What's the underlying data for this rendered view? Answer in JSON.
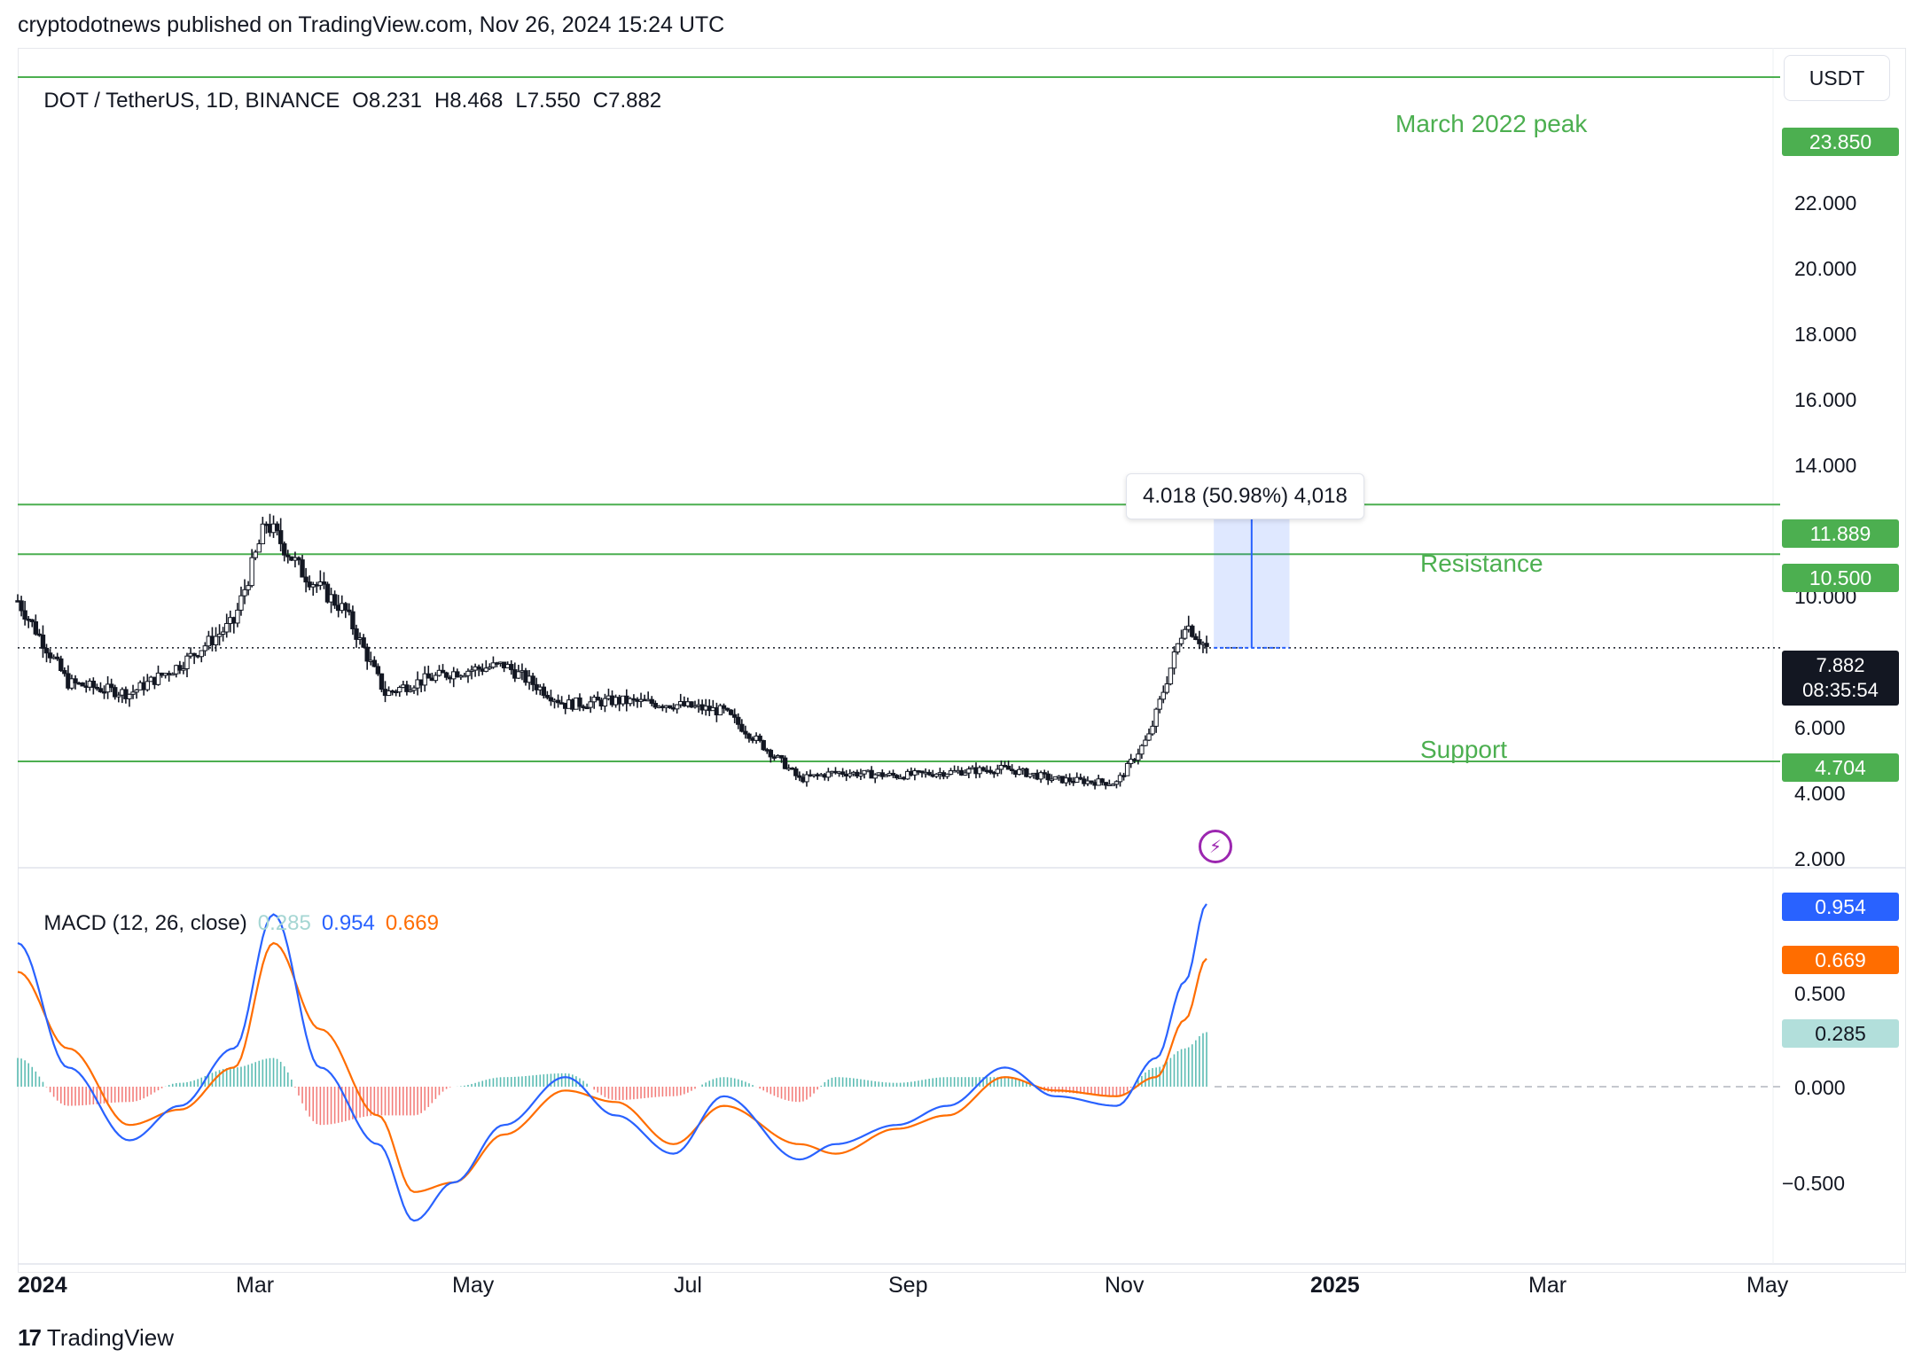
{
  "header": {
    "publish_line": "cryptodotnews published on TradingView.com, Nov 26, 2024 15:24 UTC",
    "symbol": "DOT / TetherUS, 1D, BINANCE",
    "open": "O8.231",
    "high": "H8.468",
    "low": "L7.550",
    "close": "C7.882",
    "currency_button": "USDT"
  },
  "annotations": {
    "peak_label": "March 2022 peak",
    "resistance_label": "Resistance",
    "support_label": "Support",
    "measure_text": "4.018 (50.98%) 4,018"
  },
  "price_tags": {
    "peak": "23.850",
    "upper": "11.889",
    "resistance": "10.500",
    "support": "4.704",
    "last": "7.882",
    "countdown": "08:35:54"
  },
  "price_axis": [
    "22.000",
    "20.000",
    "18.000",
    "16.000",
    "14.000",
    "10.000",
    "6.000",
    "4.000",
    "2.000"
  ],
  "macd": {
    "title": "MACD (12, 26, close)",
    "hist_value": "0.285",
    "macd_value": "0.954",
    "signal_value": "0.669",
    "axis": [
      "0.500",
      "0.000",
      "−0.500"
    ],
    "colors": {
      "macd": "#2962ff",
      "signal": "#ff6d00",
      "hist_pos": "#26a69a",
      "hist_neg": "#ef5350"
    }
  },
  "x_axis": [
    "2024",
    "Mar",
    "May",
    "Jul",
    "Sep",
    "Nov",
    "2025",
    "Mar",
    "May"
  ],
  "brand": "TradingView",
  "colors": {
    "level_line": "#4caf50",
    "candle": "#131722",
    "measure": "#2962ff"
  },
  "chart_data": [
    {
      "type": "candlestick",
      "title": "DOT / TetherUS, 1D, BINANCE",
      "x": [
        "2024-01-01",
        "2024-01-15",
        "2024-02-01",
        "2024-02-15",
        "2024-03-01",
        "2024-03-10",
        "2024-03-20",
        "2024-04-01",
        "2024-04-12",
        "2024-04-20",
        "2024-05-01",
        "2024-05-15",
        "2024-06-01",
        "2024-06-15",
        "2024-07-01",
        "2024-07-15",
        "2024-08-01",
        "2024-08-05",
        "2024-08-15",
        "2024-09-01",
        "2024-09-15",
        "2024-10-01",
        "2024-10-15",
        "2024-11-01",
        "2024-11-10",
        "2024-11-20",
        "2024-11-26"
      ],
      "close": [
        9.2,
        6.9,
        6.6,
        7.4,
        8.6,
        11.4,
        10.0,
        8.9,
        6.6,
        6.9,
        7.2,
        7.4,
        6.3,
        6.4,
        6.3,
        6.1,
        4.6,
        4.2,
        4.4,
        4.3,
        4.4,
        4.5,
        4.2,
        4.1,
        5.4,
        8.6,
        7.882
      ],
      "levels": [
        {
          "name": "March 2022 peak",
          "value": 23.85
        },
        {
          "name": "",
          "value": 11.889
        },
        {
          "name": "Resistance",
          "value": 10.5
        },
        {
          "name": "Support",
          "value": 4.704
        }
      ],
      "last_price": 7.882,
      "measure": {
        "from": 7.882,
        "to": 11.889,
        "text": "4.018 (50.98%) 4,018"
      },
      "ylabel": "USDT",
      "ylim": [
        2.0,
        24.5
      ]
    },
    {
      "type": "line",
      "title": "MACD (12, 26, close)",
      "x": [
        "2024-01-01",
        "2024-01-15",
        "2024-02-01",
        "2024-02-15",
        "2024-03-01",
        "2024-03-12",
        "2024-03-25",
        "2024-04-10",
        "2024-04-20",
        "2024-05-01",
        "2024-05-15",
        "2024-06-01",
        "2024-06-15",
        "2024-07-01",
        "2024-07-15",
        "2024-08-05",
        "2024-08-15",
        "2024-09-01",
        "2024-09-15",
        "2024-10-01",
        "2024-10-15",
        "2024-11-01",
        "2024-11-12",
        "2024-11-20",
        "2024-11-26"
      ],
      "series": [
        {
          "name": "MACD",
          "values": [
            0.75,
            0.1,
            -0.28,
            -0.1,
            0.2,
            0.9,
            0.1,
            -0.3,
            -0.7,
            -0.5,
            -0.2,
            0.05,
            -0.15,
            -0.35,
            -0.05,
            -0.38,
            -0.3,
            -0.2,
            -0.1,
            0.1,
            -0.05,
            -0.1,
            0.15,
            0.55,
            0.954
          ]
        },
        {
          "name": "Signal",
          "values": [
            0.6,
            0.2,
            -0.2,
            -0.12,
            0.1,
            0.75,
            0.3,
            -0.15,
            -0.55,
            -0.5,
            -0.25,
            -0.02,
            -0.08,
            -0.3,
            -0.1,
            -0.3,
            -0.35,
            -0.22,
            -0.15,
            0.05,
            -0.02,
            -0.05,
            0.05,
            0.35,
            0.669
          ]
        },
        {
          "name": "Histogram",
          "values": [
            0.15,
            -0.1,
            -0.08,
            0.02,
            0.1,
            0.15,
            -0.2,
            -0.15,
            -0.15,
            0.0,
            0.05,
            0.07,
            -0.07,
            -0.05,
            0.05,
            -0.08,
            0.05,
            0.02,
            0.05,
            0.05,
            -0.03,
            -0.05,
            0.1,
            0.2,
            0.285
          ]
        }
      ],
      "ylim": [
        -0.75,
        1.0
      ]
    }
  ]
}
